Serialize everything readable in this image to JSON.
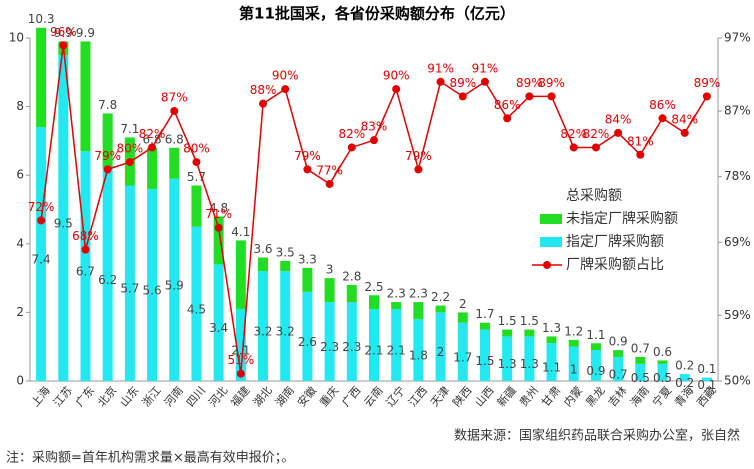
{
  "chart_data": {
    "type": "bar-line",
    "title": "第11批国采，各省份采购额分布（亿元）",
    "source": "数据来源：国家组织药品联合采购办公室，张自然",
    "note": "注：采购额=首年机构需求量×最高有效申报价；。",
    "categories": [
      "上海",
      "江苏",
      "广东",
      "北京",
      "山东",
      "浙江",
      "河南",
      "四川",
      "河北",
      "福建",
      "湖北",
      "湖南",
      "安徽",
      "重庆",
      "广西",
      "云南",
      "辽宁",
      "江西",
      "天津",
      "陕西",
      "山西",
      "新疆",
      "贵州",
      "甘肃",
      "内蒙",
      "黑龙",
      "吉林",
      "海南",
      "宁夏",
      "青海",
      "西藏"
    ],
    "series": [
      {
        "name": "总采购额",
        "values": [
          10.3,
          9.9,
          9.9,
          7.8,
          7.1,
          6.8,
          6.8,
          5.7,
          4.8,
          4.1,
          3.6,
          3.5,
          3.3,
          3.0,
          2.8,
          2.5,
          2.3,
          2.3,
          2.2,
          2,
          1.7,
          1.5,
          1.5,
          1.3,
          1.2,
          1.1,
          0.9,
          0.7,
          0.6,
          0.2,
          0.1
        ]
      },
      {
        "name": "未指定厂牌采购额",
        "color": "#22dd22",
        "values": [
          2.9,
          0.4,
          3.2,
          1.6,
          1.4,
          1.2,
          0.9,
          1.2,
          1.4,
          2.0,
          0.4,
          0.3,
          0.7,
          0.7,
          0.5,
          0.4,
          0.2,
          0.5,
          0.2,
          0.3,
          0.2,
          0.2,
          0.2,
          0.2,
          0.2,
          0.2,
          0.2,
          0.2,
          0.1,
          0.0,
          0.0
        ]
      },
      {
        "name": "指定厂牌采购额",
        "color": "#22e8f0",
        "values": [
          7.4,
          9.5,
          6.7,
          6.2,
          5.7,
          5.6,
          5.9,
          4.5,
          3.4,
          2.1,
          3.2,
          3.2,
          2.6,
          2.3,
          2.3,
          2.1,
          2.1,
          1.8,
          2,
          1.7,
          1.5,
          1.3,
          1.3,
          1.1,
          1.0,
          0.9,
          0.7,
          0.5,
          0.5,
          0.2,
          0.1
        ]
      },
      {
        "name": "厂牌采购额占比",
        "color": "#e00000",
        "axis": "y2",
        "values": [
          72,
          96,
          68,
          79,
          80,
          82,
          87,
          80,
          71,
          51,
          88,
          90,
          79,
          77,
          82,
          83,
          90,
          79,
          91,
          89,
          91,
          86,
          89,
          89,
          82,
          82,
          84,
          81,
          86,
          84,
          89
        ],
        "value_labels": [
          "72%",
          "96%",
          "68%",
          "79%",
          "80%",
          "82%",
          "87%",
          "80%",
          "71%",
          "51%",
          "88%",
          "90%",
          "79%",
          "77%",
          "82%",
          "83%",
          "90%",
          "79%",
          "91%",
          "89%",
          "91%",
          "86%",
          "89%",
          "89%",
          "82%",
          "82%",
          "84%",
          "81%",
          "86%",
          "84%",
          "89%"
        ]
      }
    ],
    "ylim": [
      0,
      10
    ],
    "yticks": [
      0,
      2,
      4,
      6,
      8,
      10
    ],
    "y2lim": [
      50,
      97
    ],
    "y2ticks": [
      {
        "value": 50,
        "label": "50%"
      },
      {
        "value": 59,
        "label": "59%"
      },
      {
        "value": 69,
        "label": "69%"
      },
      {
        "value": 78,
        "label": "78%"
      },
      {
        "value": 87,
        "label": "87%"
      },
      {
        "value": 97,
        "label": "97%"
      }
    ]
  }
}
